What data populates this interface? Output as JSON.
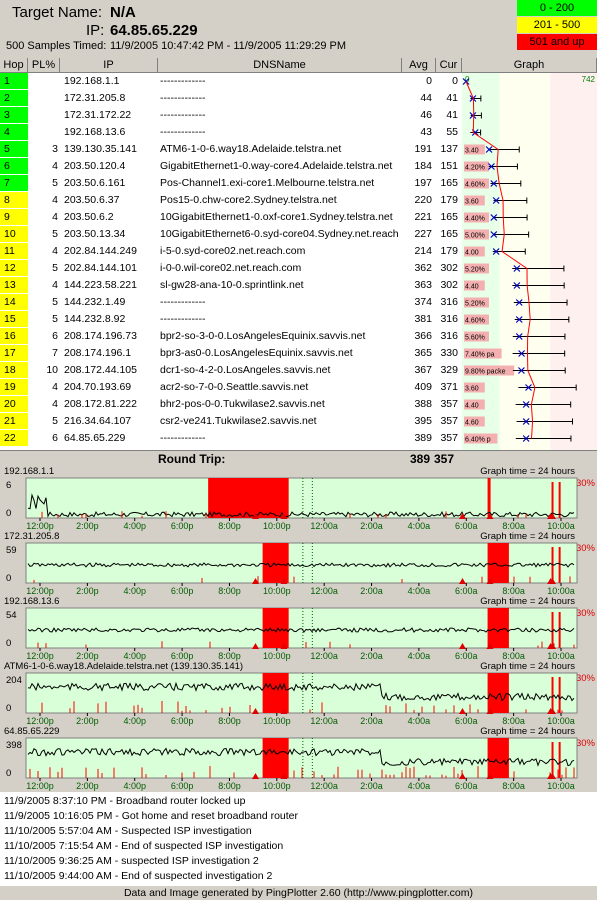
{
  "header": {
    "target_label": "Target Name:",
    "target_value": "N/A",
    "ip_label": "IP:",
    "ip_value": "64.85.65.229",
    "samples_label": "500 Samples Timed:",
    "samples_range": "11/9/2005 10:47:42 PM - 11/9/2005 11:29:29 PM"
  },
  "legend": [
    {
      "label": "0 - 200",
      "color": "#00ff00"
    },
    {
      "label": "201 - 500",
      "color": "#ffff00"
    },
    {
      "label": "501 and up",
      "color": "#ff0000"
    }
  ],
  "columns": {
    "hop": "Hop",
    "pl": "PL%",
    "ip": "IP",
    "dns": "DNSName",
    "avg": "Avg",
    "cur": "Cur",
    "graph": "Graph",
    "graph_max": "742"
  },
  "hops": [
    {
      "hop": "1",
      "pl": "",
      "ip": "192.168.1.1",
      "dns": "-------------",
      "avg": "0",
      "cur": "0",
      "pl_tag": "",
      "color": "#00ff00"
    },
    {
      "hop": "2",
      "pl": "",
      "ip": "172.31.205.8",
      "dns": "-------------",
      "avg": "44",
      "cur": "41",
      "pl_tag": "",
      "color": "#00ff00"
    },
    {
      "hop": "3",
      "pl": "",
      "ip": "172.31.172.22",
      "dns": "-------------",
      "avg": "46",
      "cur": "41",
      "pl_tag": "",
      "color": "#00ff00"
    },
    {
      "hop": "4",
      "pl": "",
      "ip": "192.168.13.6",
      "dns": "-------------",
      "avg": "43",
      "cur": "55",
      "pl_tag": "",
      "color": "#00ff00"
    },
    {
      "hop": "5",
      "pl": "3",
      "ip": "139.130.35.141",
      "dns": "ATM6-1-0-6.way18.Adelaide.telstra.net",
      "avg": "191",
      "cur": "137",
      "pl_tag": "3.40",
      "color": "#00ff00"
    },
    {
      "hop": "6",
      "pl": "4",
      "ip": "203.50.120.4",
      "dns": "GigabitEthernet1-0.way-core4.Adelaide.telstra.net",
      "avg": "184",
      "cur": "151",
      "pl_tag": "4.20%",
      "color": "#00ff00"
    },
    {
      "hop": "7",
      "pl": "5",
      "ip": "203.50.6.161",
      "dns": "Pos-Channel1.exi-core1.Melbourne.telstra.net",
      "avg": "197",
      "cur": "165",
      "pl_tag": "4.60%",
      "color": "#00ff00"
    },
    {
      "hop": "8",
      "pl": "4",
      "ip": "203.50.6.37",
      "dns": "Pos15-0.chw-core2.Sydney.telstra.net",
      "avg": "220",
      "cur": "179",
      "pl_tag": "3.60",
      "color": "#ffff00"
    },
    {
      "hop": "9",
      "pl": "4",
      "ip": "203.50.6.2",
      "dns": "10GigabitEthernet1-0.oxf-core1.Sydney.telstra.net",
      "avg": "221",
      "cur": "165",
      "pl_tag": "4.40%",
      "color": "#ffff00"
    },
    {
      "hop": "10",
      "pl": "5",
      "ip": "203.50.13.34",
      "dns": "10GigabitEthernet6-0.syd-core04.Sydney.net.reach",
      "avg": "227",
      "cur": "165",
      "pl_tag": "5.00%",
      "color": "#ffff00"
    },
    {
      "hop": "11",
      "pl": "4",
      "ip": "202.84.144.249",
      "dns": "i-5-0.syd-core02.net.reach.com",
      "avg": "214",
      "cur": "179",
      "pl_tag": "4.00",
      "color": "#ffff00"
    },
    {
      "hop": "12",
      "pl": "5",
      "ip": "202.84.144.101",
      "dns": "i-0-0.wil-core02.net.reach.com",
      "avg": "362",
      "cur": "302",
      "pl_tag": "5.20%",
      "color": "#ffff00"
    },
    {
      "hop": "13",
      "pl": "4",
      "ip": "144.223.58.221",
      "dns": "sl-gw28-ana-10-0.sprintlink.net",
      "avg": "363",
      "cur": "302",
      "pl_tag": "4.40",
      "color": "#ffff00"
    },
    {
      "hop": "14",
      "pl": "5",
      "ip": "144.232.1.49",
      "dns": "-------------",
      "avg": "374",
      "cur": "316",
      "pl_tag": "5.20%",
      "color": "#ffff00"
    },
    {
      "hop": "15",
      "pl": "5",
      "ip": "144.232.8.92",
      "dns": "-------------",
      "avg": "381",
      "cur": "316",
      "pl_tag": "4.60%",
      "color": "#ffff00"
    },
    {
      "hop": "16",
      "pl": "6",
      "ip": "208.174.196.73",
      "dns": "bpr2-so-3-0-0.LosAngelesEquinix.savvis.net",
      "avg": "366",
      "cur": "316",
      "pl_tag": "5.60%",
      "color": "#ffff00"
    },
    {
      "hop": "17",
      "pl": "7",
      "ip": "208.174.196.1",
      "dns": "bpr3-as0-0.LosAngelesEquinix.savvis.net",
      "avg": "365",
      "cur": "330",
      "pl_tag": "7.40% pa",
      "color": "#ffff00"
    },
    {
      "hop": "18",
      "pl": "10",
      "ip": "208.172.44.105",
      "dns": "dcr1-so-4-2-0.LosAngeles.savvis.net",
      "avg": "367",
      "cur": "329",
      "pl_tag": "9.80% packe",
      "color": "#ffff00"
    },
    {
      "hop": "19",
      "pl": "4",
      "ip": "204.70.193.69",
      "dns": "acr2-so-7-0-0.Seattle.savvis.net",
      "avg": "409",
      "cur": "371",
      "pl_tag": "3.60",
      "color": "#ffff00"
    },
    {
      "hop": "20",
      "pl": "4",
      "ip": "208.172.81.222",
      "dns": "bhr2-pos-0-0.Tukwilase2.savvis.net",
      "avg": "388",
      "cur": "357",
      "pl_tag": "4.40",
      "color": "#ffff00"
    },
    {
      "hop": "21",
      "pl": "5",
      "ip": "216.34.64.107",
      "dns": "csr2-ve241.Tukwilase2.savvis.net",
      "avg": "395",
      "cur": "357",
      "pl_tag": "4.60",
      "color": "#ffff00"
    },
    {
      "hop": "22",
      "pl": "6",
      "ip": "64.85.65.229",
      "dns": "-------------",
      "avg": "389",
      "cur": "357",
      "pl_tag": "6.40% p",
      "color": "#ffff00"
    }
  ],
  "round_trip": {
    "label": "Round Trip:",
    "avg": "389",
    "cur": "357"
  },
  "graphs": [
    {
      "title": "192.168.1.1",
      "ymax": "6",
      "ymin": "0",
      "time": "Graph time = 24 hours",
      "pct": "30%"
    },
    {
      "title": "172.31.205.8",
      "ymax": "59",
      "ymin": "0",
      "time": "Graph time = 24 hours",
      "pct": "30%"
    },
    {
      "title": "192.168.13.6",
      "ymax": "54",
      "ymin": "0",
      "time": "Graph time = 24 hours",
      "pct": "30%"
    },
    {
      "title": "ATM6-1-0-6.way18.Adelaide.telstra.net (139.130.35.141)",
      "ymax": "204",
      "ymin": "0",
      "time": "Graph time = 24 hours",
      "pct": "30%"
    },
    {
      "title": "64.85.65.229",
      "ymax": "398",
      "ymin": "0",
      "time": "Graph time = 24 hours",
      "pct": "30%"
    }
  ],
  "time_ticks": [
    "12:00p",
    "2:00p",
    "4:00p",
    "6:00p",
    "8:00p",
    "10:00p",
    "12:00a",
    "2:00a",
    "4:00a",
    "6:00a",
    "8:00a",
    "10:00a"
  ],
  "events": [
    "11/9/2005 8:37:10 PM - Broadband router locked up",
    "11/9/2005 10:16:05 PM - Got home and reset broadband router",
    "11/10/2005 5:57:04 AM - Suspected ISP investigation",
    "11/10/2005 7:15:54 AM - End of suspected ISP investigation",
    "11/10/2005 9:36:25 AM - suspected ISP investigation 2",
    "11/10/2005 9:44:00 AM - End of suspected investigation 2"
  ],
  "footer": "Data and Image generated by PingPlotter 2.60 (http://www.pingplotter.com)"
}
